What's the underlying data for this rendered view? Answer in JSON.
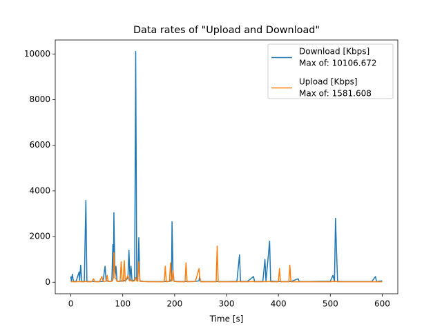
{
  "chart_data": {
    "type": "line",
    "title": "Data rates of \"Upload and Download\"",
    "x_label": "Time [s]",
    "x": [
      0,
      1,
      3,
      5,
      10,
      16,
      17,
      19,
      21,
      26,
      29,
      31,
      40,
      44,
      46,
      55,
      60,
      62,
      66,
      68,
      70,
      72,
      79,
      81,
      82,
      83,
      85,
      87,
      89,
      95,
      97,
      99,
      101,
      103,
      105,
      110,
      112,
      114,
      116,
      118,
      123,
      125,
      127,
      129,
      131,
      133,
      140,
      150,
      160,
      170,
      180,
      182,
      184,
      190,
      192,
      194,
      195,
      197,
      199,
      210,
      220,
      222,
      224,
      240,
      247,
      248,
      250,
      260,
      270,
      280,
      282,
      284,
      300,
      320,
      325,
      327,
      340,
      352,
      354,
      370,
      374,
      376,
      383,
      385,
      400,
      402,
      404,
      420,
      422,
      424,
      438,
      440,
      460,
      480,
      500,
      505,
      508,
      510,
      512,
      514,
      520,
      540,
      560,
      580,
      587,
      589,
      600
    ],
    "series": [
      {
        "name": "Download [Kbps]",
        "legend_note": "Max of: 10106.672",
        "color": "#1f77b4",
        "values": [
          250,
          60,
          350,
          40,
          30,
          450,
          80,
          750,
          40,
          30,
          3580,
          40,
          30,
          40,
          30,
          30,
          40,
          30,
          700,
          50,
          60,
          40,
          50,
          1650,
          200,
          3050,
          200,
          700,
          50,
          40,
          60,
          40,
          50,
          80,
          50,
          200,
          1400,
          100,
          700,
          50,
          100,
          10106.672,
          100,
          50,
          1950,
          60,
          40,
          30,
          30,
          30,
          30,
          40,
          30,
          40,
          50,
          200,
          2650,
          300,
          40,
          30,
          30,
          30,
          30,
          40,
          60,
          250,
          40,
          30,
          30,
          30,
          30,
          30,
          30,
          40,
          1200,
          40,
          30,
          250,
          30,
          40,
          1000,
          40,
          1800,
          50,
          30,
          30,
          30,
          30,
          30,
          30,
          150,
          30,
          30,
          40,
          40,
          300,
          50,
          2800,
          1350,
          40,
          30,
          30,
          30,
          30,
          250,
          30,
          60
        ]
      },
      {
        "name": "Upload [Kbps]",
        "legend_note": "Max of: 1581.608",
        "color": "#ff7f0e",
        "values": [
          20,
          20,
          30,
          20,
          20,
          30,
          20,
          30,
          20,
          20,
          40,
          20,
          20,
          150,
          20,
          20,
          250,
          40,
          40,
          50,
          300,
          30,
          40,
          100,
          200,
          1300,
          200,
          150,
          40,
          30,
          900,
          50,
          40,
          950,
          40,
          300,
          100,
          50,
          100,
          40,
          60,
          200,
          60,
          40,
          900,
          40,
          30,
          20,
          20,
          20,
          20,
          700,
          20,
          30,
          850,
          50,
          60,
          500,
          30,
          20,
          20,
          850,
          20,
          30,
          600,
          300,
          20,
          20,
          20,
          20,
          1581.608,
          20,
          20,
          20,
          30,
          20,
          20,
          30,
          20,
          20,
          30,
          20,
          40,
          20,
          20,
          600,
          20,
          20,
          750,
          20,
          20,
          20,
          20,
          20,
          20,
          30,
          20,
          40,
          30,
          20,
          20,
          20,
          20,
          20,
          20,
          20,
          20
        ]
      }
    ],
    "xlim": [
      -30,
      630
    ],
    "xticks": [
      0,
      100,
      200,
      300,
      400,
      500,
      600
    ],
    "ylim": [
      -505,
      10612
    ],
    "yticks": [
      0,
      2000,
      4000,
      6000,
      8000,
      10000
    ],
    "grid": false,
    "legend": "upper right"
  }
}
